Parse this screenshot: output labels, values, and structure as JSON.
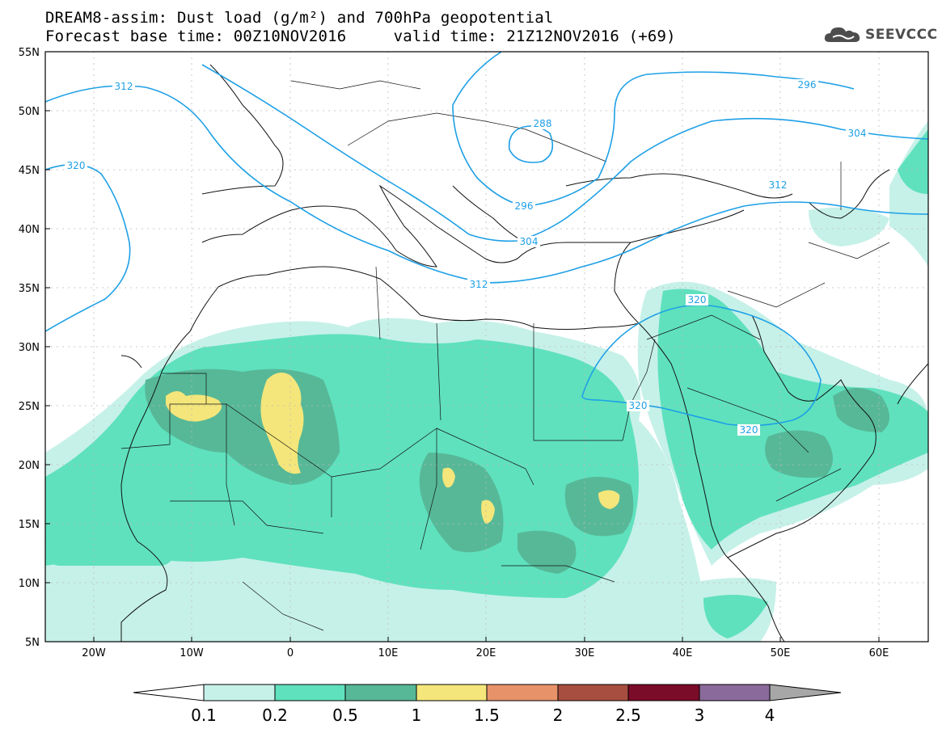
{
  "header": {
    "title_line1": "DREAM8-assim: Dust load (g/m²) and 700hPa geopotential",
    "title_line2": "Forecast base time: 00Z10NOV2016     valid time: 21Z12NOV2016 (+69)",
    "brand": "SEEVCCC",
    "brand_icon": "cloud-logo-icon"
  },
  "map": {
    "lon_range": [
      -25,
      65
    ],
    "lat_range": [
      5,
      55
    ],
    "lon_ticks": [
      "20W",
      "10W",
      "0",
      "10E",
      "20E",
      "30E",
      "40E",
      "50E",
      "60E"
    ],
    "lat_ticks": [
      "55N",
      "50N",
      "45N",
      "40N",
      "35N",
      "30N",
      "25N",
      "20N",
      "15N",
      "10N",
      "5N"
    ],
    "contour_labels": [
      "312",
      "320",
      "296",
      "288",
      "296",
      "304",
      "304",
      "312",
      "312",
      "320",
      "320",
      "320"
    ],
    "contour_color": "#1ea0e6"
  },
  "colorbar": {
    "labels": [
      "0.1",
      "0.2",
      "0.5",
      "1",
      "1.5",
      "2",
      "2.5",
      "3",
      "4"
    ],
    "colors": [
      "#ffffff",
      "#c6f1e8",
      "#5fe1bd",
      "#57b898",
      "#f4e67a",
      "#e8926a",
      "#a84e40",
      "#7b0c29",
      "#8a6a9a",
      "#a7a7a7"
    ]
  }
}
